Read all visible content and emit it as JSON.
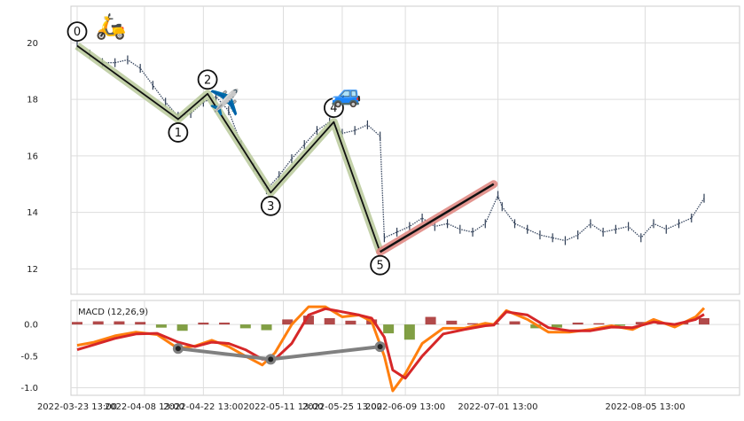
{
  "chart_data": [
    {
      "type": "line",
      "panel": "price",
      "title": "",
      "xlabel": "",
      "ylabel": "",
      "ylim": [
        11.1,
        21.3
      ],
      "y_ticks": [
        "12",
        "14",
        "16",
        "18",
        "20"
      ],
      "grid": true,
      "x_range": [
        "2022-03-23 13:00",
        "2022-08-20 13:00"
      ],
      "series": [
        {
          "style": "vertical-bars",
          "x": [
            "2022-03-23",
            "2022-03-26",
            "2022-03-29",
            "2022-04-01",
            "2022-04-04",
            "2022-04-07",
            "2022-04-10",
            "2022-04-13",
            "2022-04-16",
            "2022-04-19",
            "2022-04-22",
            "2022-04-25",
            "2022-04-28",
            "2022-05-01",
            "2022-05-04",
            "2022-05-07",
            "2022-05-10",
            "2022-05-13",
            "2022-05-16",
            "2022-05-19",
            "2022-05-22",
            "2022-05-25",
            "2022-05-28",
            "2022-05-31",
            "2022-06-03",
            "2022-06-04",
            "2022-06-07",
            "2022-06-10",
            "2022-06-13",
            "2022-06-16",
            "2022-06-19",
            "2022-06-22",
            "2022-06-25",
            "2022-06-28",
            "2022-07-01",
            "2022-07-02",
            "2022-07-05",
            "2022-07-08",
            "2022-07-11",
            "2022-07-14",
            "2022-07-17",
            "2022-07-20",
            "2022-07-23",
            "2022-07-26",
            "2022-07-29",
            "2022-08-01",
            "2022-08-04",
            "2022-08-07",
            "2022-08-10",
            "2022-08-13",
            "2022-08-16",
            "2022-08-19"
          ],
          "values": [
            19.9,
            19.6,
            19.3,
            19.3,
            19.4,
            19.1,
            18.5,
            17.9,
            17.4,
            17.5,
            17.9,
            18.1,
            17.6,
            16.4,
            15.6,
            14.8,
            15.3,
            15.9,
            16.4,
            16.9,
            17.2,
            16.8,
            16.9,
            17.1,
            16.7,
            13.1,
            13.3,
            13.5,
            13.8,
            13.5,
            13.6,
            13.4,
            13.3,
            13.6,
            14.6,
            14.2,
            13.6,
            13.4,
            13.2,
            13.1,
            13.0,
            13.2,
            13.6,
            13.3,
            13.4,
            13.5,
            13.1,
            13.6,
            13.4,
            13.6,
            13.8,
            14.5
          ]
        }
      ],
      "pattern_waves": {
        "points": [
          {
            "label": "0",
            "x": "2022-03-23",
            "y": 19.9
          },
          {
            "label": "1",
            "x": "2022-04-16",
            "y": 17.3
          },
          {
            "label": "2",
            "x": "2022-04-23",
            "y": 18.2
          },
          {
            "label": "3",
            "x": "2022-05-08",
            "y": 14.7
          },
          {
            "label": "4",
            "x": "2022-05-23",
            "y": 17.2
          },
          {
            "label": "5",
            "x": "2022-06-03",
            "y": 12.6
          }
        ],
        "target_line": {
          "from": {
            "x": "2022-06-03",
            "y": 12.6
          },
          "to": {
            "x": "2022-06-30",
            "y": 15.0
          }
        }
      },
      "annotations": [
        {
          "icon": "scooter-icon",
          "glyph": "🛵",
          "x": "2022-03-31",
          "y": 20.3
        },
        {
          "icon": "airplane-icon",
          "glyph": "✈️",
          "x": "2022-04-27",
          "y": 17.6
        },
        {
          "icon": "car-icon",
          "glyph": "🚙",
          "x": "2022-05-26",
          "y": 17.9
        }
      ]
    },
    {
      "type": "line",
      "panel": "macd",
      "legend": "MACD (12,26,9)",
      "ylim": [
        -1.12,
        0.38
      ],
      "y_ticks": [
        "0.0",
        "-0.5",
        "-1.0"
      ],
      "x_tick_labels": [
        "2022-03-23 13:00",
        "2022-04-08 13:00",
        "2022-04-22 13:00",
        "2022-05-11 13:00",
        "2022-05-25 13:00",
        "2022-06-09 13:00",
        "2022-07-01 13:00",
        "2022-08-05 13:00"
      ],
      "grid": true,
      "colors": {
        "macd": "#ff7f0e",
        "signal": "#d62728",
        "hist_pos": "#a52a2a",
        "hist_neg": "#6b8e23",
        "divergence": "#808080"
      },
      "series": [
        {
          "name": "MACD",
          "x": [
            "2022-03-23",
            "2022-03-27",
            "2022-04-01",
            "2022-04-06",
            "2022-04-11",
            "2022-04-16",
            "2022-04-20",
            "2022-04-24",
            "2022-04-28",
            "2022-05-02",
            "2022-05-06",
            "2022-05-09",
            "2022-05-13",
            "2022-05-17",
            "2022-05-21",
            "2022-05-25",
            "2022-05-29",
            "2022-06-01",
            "2022-06-04",
            "2022-06-06",
            "2022-06-09",
            "2022-06-13",
            "2022-06-18",
            "2022-06-23",
            "2022-06-28",
            "2022-06-30",
            "2022-07-03",
            "2022-07-08",
            "2022-07-13",
            "2022-07-18",
            "2022-07-23",
            "2022-07-28",
            "2022-08-02",
            "2022-08-07",
            "2022-08-12",
            "2022-08-17",
            "2022-08-19"
          ],
          "values": [
            -0.33,
            -0.28,
            -0.18,
            -0.12,
            -0.16,
            -0.38,
            -0.34,
            -0.25,
            -0.35,
            -0.5,
            -0.64,
            -0.45,
            0.0,
            0.28,
            0.28,
            0.12,
            0.15,
            0.05,
            -0.5,
            -1.05,
            -0.78,
            -0.3,
            -0.06,
            -0.06,
            0.02,
            0.0,
            0.22,
            0.08,
            -0.12,
            -0.12,
            -0.08,
            -0.02,
            -0.08,
            0.08,
            -0.04,
            0.12,
            0.26
          ]
        },
        {
          "name": "Signal",
          "x": [
            "2022-03-23",
            "2022-03-27",
            "2022-04-01",
            "2022-04-06",
            "2022-04-11",
            "2022-04-16",
            "2022-04-20",
            "2022-04-24",
            "2022-04-28",
            "2022-05-02",
            "2022-05-06",
            "2022-05-09",
            "2022-05-13",
            "2022-05-17",
            "2022-05-21",
            "2022-05-25",
            "2022-05-29",
            "2022-06-01",
            "2022-06-04",
            "2022-06-06",
            "2022-06-09",
            "2022-06-13",
            "2022-06-18",
            "2022-06-23",
            "2022-06-28",
            "2022-06-30",
            "2022-07-03",
            "2022-07-08",
            "2022-07-13",
            "2022-07-18",
            "2022-07-23",
            "2022-07-28",
            "2022-08-02",
            "2022-08-07",
            "2022-08-12",
            "2022-08-17",
            "2022-08-19"
          ],
          "values": [
            -0.4,
            -0.32,
            -0.22,
            -0.15,
            -0.14,
            -0.28,
            -0.35,
            -0.28,
            -0.3,
            -0.4,
            -0.55,
            -0.55,
            -0.3,
            0.15,
            0.25,
            0.2,
            0.15,
            0.1,
            -0.2,
            -0.72,
            -0.85,
            -0.5,
            -0.15,
            -0.08,
            -0.02,
            -0.01,
            0.2,
            0.15,
            -0.05,
            -0.1,
            -0.1,
            -0.04,
            -0.05,
            0.04,
            0.0,
            0.08,
            0.16
          ]
        }
      ],
      "histogram": {
        "x": [
          "2022-03-23",
          "2022-03-28",
          "2022-04-02",
          "2022-04-07",
          "2022-04-12",
          "2022-04-17",
          "2022-04-22",
          "2022-04-27",
          "2022-05-02",
          "2022-05-07",
          "2022-05-12",
          "2022-05-17",
          "2022-05-22",
          "2022-05-27",
          "2022-06-01",
          "2022-06-05",
          "2022-06-10",
          "2022-06-15",
          "2022-06-20",
          "2022-06-25",
          "2022-06-30",
          "2022-07-05",
          "2022-07-10",
          "2022-07-15",
          "2022-07-20",
          "2022-07-25",
          "2022-07-30",
          "2022-08-04",
          "2022-08-09",
          "2022-08-14",
          "2022-08-19"
        ],
        "values": [
          0.04,
          0.05,
          0.05,
          0.04,
          -0.05,
          -0.1,
          0.03,
          0.03,
          -0.06,
          -0.09,
          0.08,
          0.14,
          0.1,
          0.06,
          0.08,
          -0.14,
          -0.24,
          0.12,
          0.06,
          0.02,
          0.02,
          0.05,
          -0.06,
          -0.05,
          0.03,
          0.02,
          -0.02,
          0.04,
          0.01,
          0.03,
          0.1
        ]
      },
      "divergence_points": [
        {
          "x": "2022-04-16",
          "y": -0.38
        },
        {
          "x": "2022-05-08",
          "y": -0.55
        },
        {
          "x": "2022-06-03",
          "y": -0.35
        }
      ]
    }
  ]
}
